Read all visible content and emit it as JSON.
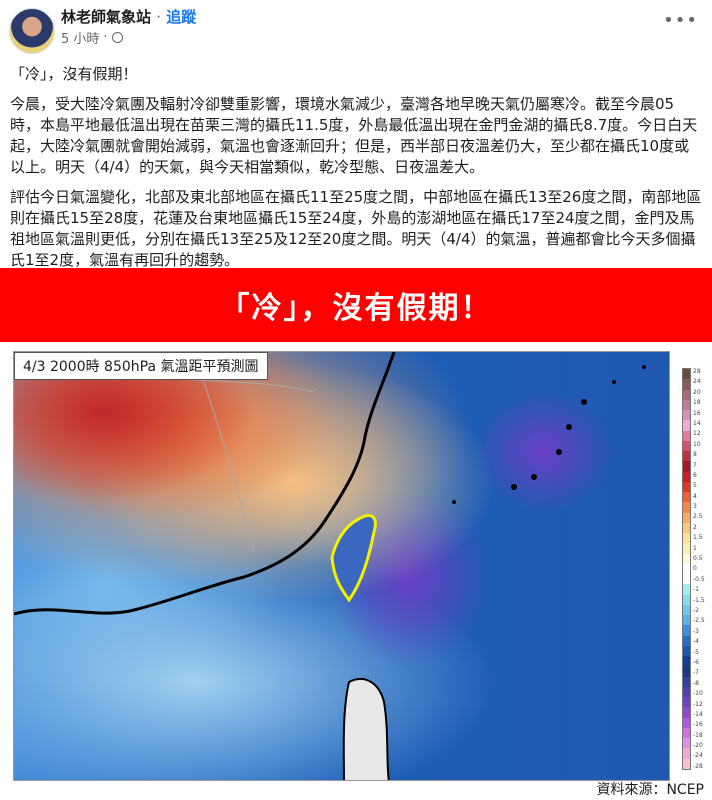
{
  "post": {
    "author": "林老師氣象站",
    "separator": "·",
    "follow_label": "追蹤",
    "time": "5 小時",
    "privacy_icon": "globe-icon",
    "more_label": "•••",
    "paragraphs": [
      "「冷」，沒有假期！",
      "今晨，受大陸冷氣團及輻射冷卻雙重影響，環境水氣減少，臺灣各地早晚天氣仍屬寒冷。截至今晨05時，本島平地最低溫出現在苗栗三灣的攝氏11.5度，外島最低溫出現在金門金湖的攝氏8.7度。今日白天起，大陸冷氣團就會開始減弱，氣溫也會逐漸回升；但是，西半部日夜溫差仍大，至少都在攝氏10度或以上。明天（4/4）的天氣，與今天相當類似，乾冷型態、日夜溫差大。",
      "評估今日氣溫變化，北部及東北部地區在攝氏11至25度之間，中部地區在攝氏13至26度之間，南部地區則在攝氏15至28度，花蓮及台東地區攝氏15至24度，外島的澎湖地區在攝氏17至24度之間，金門及馬祖地區氣溫則更低，分別在攝氏13至25及12至20度之間。明天（4/4）的氣溫，普遍都會比今天多個攝氏1至2度，氣溫有再回升的趨勢。"
    ]
  },
  "image": {
    "banner": "「冷」，沒有假期！",
    "banner_color": "#ff0000",
    "map_title": "4/3  2000時  850hPa 氣溫距平預測圖",
    "colorbar_labels": [
      "28",
      "24",
      "20",
      "18",
      "16",
      "14",
      "12",
      "10",
      "8",
      "7",
      "6",
      "5",
      "4",
      "3",
      "2.5",
      "2",
      "1.5",
      "1",
      "0.5",
      "0",
      "-0.5",
      "-1",
      "-1.5",
      "-2",
      "-2.5",
      "-3",
      "-4",
      "-5",
      "-6",
      "-7",
      "-8",
      "-10",
      "-12",
      "-14",
      "-16",
      "-18",
      "-20",
      "-24",
      "-28"
    ],
    "colorbar_colors": [
      "#6b4a3a",
      "#8a5a5a",
      "#a86a78",
      "#c07a98",
      "#d890b8",
      "#f0a8d8",
      "#e87898",
      "#d85070",
      "#c03040",
      "#a81828",
      "#c82020",
      "#e03828",
      "#f06030",
      "#f88848",
      "#f8a860",
      "#f8c878",
      "#f8e098",
      "#f8f0b0",
      "#fcf8d8",
      "#ffffff",
      "#ffffff",
      "#a0f0f0",
      "#80e0f0",
      "#70c8f0",
      "#58b0f0",
      "#3890e0",
      "#2070c8",
      "#1858b0",
      "#104098",
      "#183888",
      "#3040a0",
      "#5040b0",
      "#7040c0",
      "#9048d0",
      "#b058e0",
      "#d070e0",
      "#e090e0",
      "#f0a8d8",
      "#f8c0c8"
    ],
    "source": "資料來源：NCEP"
  }
}
